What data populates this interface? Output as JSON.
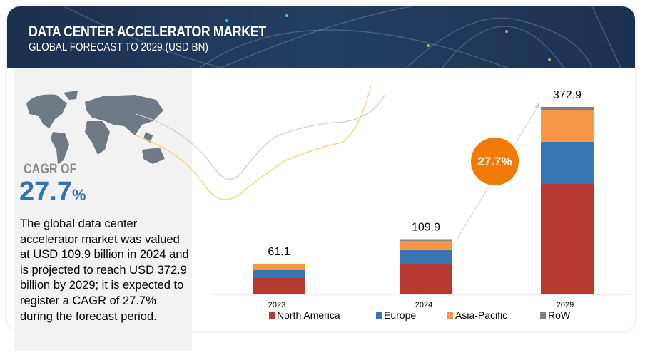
{
  "header": {
    "title": "DATA CENTER ACCELERATOR MARKET",
    "subtitle": "GLOBAL FORECAST TO 2029 (USD BN)"
  },
  "summary": {
    "cagr_label": "CAGR OF",
    "cagr_value": "27.7",
    "cagr_unit": "%",
    "description": "The global data center accelerator market was valued at USD 109.9 billion in 2024 and is projected to reach USD 372.9 billion by 2029; it is expected to register a CAGR of 27.7% during the forecast period."
  },
  "chart_data": {
    "type": "bar",
    "stacked": true,
    "categories": [
      "2023",
      "2024",
      "2029"
    ],
    "totals": [
      "61.1",
      "109.9",
      "372.9"
    ],
    "series": [
      {
        "name": "North America",
        "color": "#b63a32",
        "values": [
          32.6,
          61.0,
          219.8
        ]
      },
      {
        "name": "Europe",
        "color": "#3676b4",
        "values": [
          15.6,
          27.0,
          83.7
        ]
      },
      {
        "name": "Asia-Pacific",
        "color": "#f79646",
        "values": [
          11.3,
          18.4,
          62.4
        ]
      },
      {
        "name": "RoW",
        "color": "#7f7f7f",
        "values": [
          1.6,
          3.5,
          7.0
        ]
      }
    ],
    "ylim": [
      0,
      372.9
    ],
    "legend": "bottom",
    "grid": false,
    "annotation": "27.7%"
  }
}
